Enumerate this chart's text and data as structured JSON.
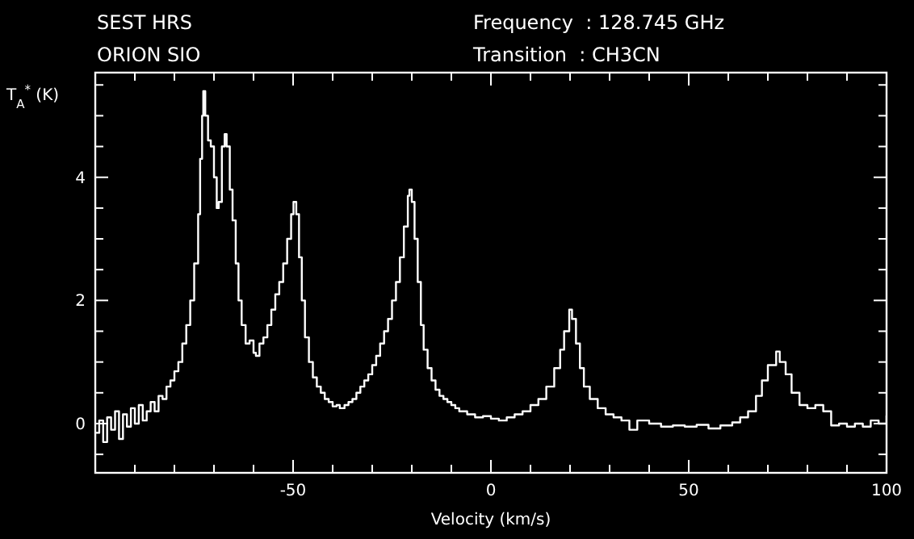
{
  "chart_data": {
    "type": "step",
    "title": "SEST HRS",
    "subtitle": "ORION SIO",
    "annotations": [
      "Frequency  : 128.745 GHz",
      "Transition  : CH3CN"
    ],
    "xlabel": "Velocity (km/s)",
    "ylabel": "T$_{A}$$^{*}$ (K)",
    "xlim": [
      -100,
      100
    ],
    "ylim": [
      -0.8,
      5.7
    ],
    "xticks": [
      {
        "value": -100,
        "label": null
      },
      {
        "value": -90,
        "label": null
      },
      {
        "value": -80,
        "label": null
      },
      {
        "value": -70,
        "label": null
      },
      {
        "value": -60,
        "label": null
      },
      -50,
      {
        "value": -40,
        "label": null
      },
      {
        "value": -30,
        "label": null
      },
      {
        "value": -20,
        "label": null
      },
      {
        "value": -10,
        "label": null
      },
      0,
      {
        "value": 10,
        "label": null
      },
      {
        "value": 20,
        "label": null
      },
      {
        "value": 30,
        "label": null
      },
      {
        "value": 40,
        "label": null
      },
      50,
      {
        "value": 60,
        "label": null
      },
      {
        "value": 70,
        "label": null
      },
      {
        "value": 80,
        "label": null
      },
      {
        "value": 90,
        "label": null
      },
      100
    ],
    "yticks": [
      {
        "value": -0.5,
        "label": null
      },
      0,
      {
        "value": 0.5,
        "label": null
      },
      {
        "value": 1,
        "label": null
      },
      {
        "value": 1.5,
        "label": null
      },
      2,
      {
        "value": 2.5,
        "label": null
      },
      {
        "value": 3,
        "label": null
      },
      {
        "value": 3.5,
        "label": null
      },
      4,
      {
        "value": 4.5,
        "label": null
      },
      {
        "value": 5,
        "label": null
      },
      {
        "value": 5.5,
        "label": null
      }
    ],
    "grid": false,
    "series": [
      {
        "color": "#ffffff",
        "x": [
          -100,
          -99,
          -98,
          -97,
          -96,
          -95,
          -94,
          -93,
          -92,
          -91,
          -90,
          -89,
          -88,
          -87,
          -86,
          -85,
          -84,
          -83,
          -82,
          -81,
          -80,
          -79,
          -78,
          -77,
          -76,
          -75,
          -74,
          -73.5,
          -73,
          -72.7,
          -72.2,
          -71.5,
          -70.8,
          -70,
          -69.3,
          -68.8,
          -68,
          -67.3,
          -66.8,
          -66,
          -65.3,
          -64.5,
          -63.8,
          -63,
          -62,
          -61,
          -60,
          -59.4,
          -58.5,
          -57.5,
          -56.5,
          -55.5,
          -54.5,
          -53.5,
          -52.5,
          -51.5,
          -50.5,
          -49.9,
          -49.2,
          -48.5,
          -47.8,
          -47,
          -46,
          -45,
          -44,
          -43,
          -42,
          -41,
          -40,
          -39,
          -38.2,
          -37,
          -36,
          -35,
          -34,
          -33,
          -32,
          -31,
          -30,
          -29,
          -28,
          -27,
          -26,
          -25,
          -24,
          -23,
          -22,
          -21,
          -20.6,
          -20,
          -19.3,
          -18.5,
          -17.7,
          -17,
          -16,
          -15,
          -14,
          -13,
          -12,
          -11,
          -10,
          -9,
          -8,
          -6,
          -4,
          -2,
          0,
          2,
          4,
          6,
          8,
          10,
          12,
          14,
          16,
          17.5,
          18.5,
          19.8,
          20.5,
          21.5,
          22.5,
          23.5,
          25,
          27,
          29,
          31,
          33,
          35,
          37,
          40,
          43,
          46,
          49,
          52,
          55,
          58,
          61,
          63,
          65,
          67,
          68.5,
          70,
          72.1,
          73,
          74.5,
          76,
          78,
          80,
          82,
          84,
          86,
          88,
          90,
          92,
          94,
          96,
          98,
          100
        ],
        "values": [
          -0.15,
          0.05,
          -0.3,
          0.1,
          -0.1,
          0.2,
          -0.25,
          0.15,
          -0.05,
          0.25,
          0,
          0.3,
          0.05,
          0.2,
          0.35,
          0.2,
          0.45,
          0.4,
          0.6,
          0.7,
          0.85,
          1,
          1.3,
          1.6,
          2,
          2.6,
          3.4,
          4.3,
          5,
          5.4,
          5,
          4.6,
          4.5,
          4,
          3.5,
          3.6,
          4.5,
          4.7,
          4.5,
          3.8,
          3.3,
          2.6,
          2,
          1.6,
          1.3,
          1.35,
          1.15,
          1.1,
          1.3,
          1.4,
          1.6,
          1.85,
          2.1,
          2.3,
          2.6,
          3,
          3.4,
          3.6,
          3.4,
          2.7,
          2,
          1.4,
          1,
          0.75,
          0.6,
          0.5,
          0.4,
          0.35,
          0.28,
          0.3,
          0.25,
          0.3,
          0.35,
          0.4,
          0.5,
          0.6,
          0.7,
          0.8,
          0.95,
          1.1,
          1.3,
          1.5,
          1.7,
          2,
          2.3,
          2.7,
          3.2,
          3.7,
          3.8,
          3.6,
          3,
          2.3,
          1.6,
          1.2,
          0.9,
          0.7,
          0.55,
          0.45,
          0.4,
          0.35,
          0.3,
          0.25,
          0.2,
          0.15,
          0.1,
          0.12,
          0.08,
          0.05,
          0.1,
          0.15,
          0.2,
          0.3,
          0.4,
          0.6,
          0.9,
          1.2,
          1.5,
          1.85,
          1.7,
          1.3,
          0.9,
          0.6,
          0.4,
          0.25,
          0.15,
          0.1,
          0.05,
          -0.1,
          0.05,
          0,
          -0.05,
          -0.03,
          -0.05,
          -0.02,
          -0.08,
          -0.03,
          0.02,
          0.1,
          0.2,
          0.45,
          0.7,
          0.95,
          1.17,
          1,
          0.8,
          0.5,
          0.3,
          0.25,
          0.3,
          0.2,
          -0.03,
          0,
          -0.05,
          0,
          -0.05,
          0.05,
          0,
          0.13
        ]
      }
    ]
  }
}
